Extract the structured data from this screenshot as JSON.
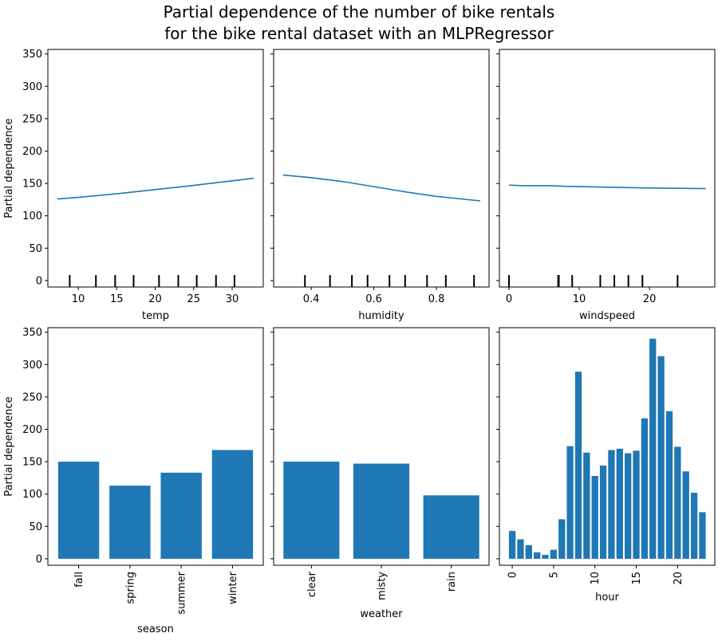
{
  "chart_data": [
    {
      "type": "line",
      "title_line1": "Partial dependence of the number of bike rentals",
      "title_line2": "for the bike rental dataset with an MLPRegressor",
      "xlabel": "temp",
      "ylabel": "Partial dependence",
      "xlim": [
        6.06,
        34.04
      ],
      "ylim": [
        -10,
        357
      ],
      "xticks": [
        10,
        15,
        20,
        25,
        30
      ],
      "yticks": [
        0,
        50,
        100,
        150,
        200,
        250,
        300,
        350
      ],
      "x": [
        7.3,
        10,
        15,
        20,
        25,
        30,
        32.8
      ],
      "y": [
        126,
        128.5,
        134,
        140.5,
        147,
        154,
        158
      ],
      "deciles": [
        8.9,
        12.3,
        14.8,
        17.2,
        20.5,
        23.0,
        25.4,
        27.9,
        30.3
      ]
    },
    {
      "type": "line",
      "xlabel": "humidity",
      "xlim": [
        0.28,
        0.968
      ],
      "ylim": [
        -10,
        357
      ],
      "xticks": [
        0.4,
        0.6,
        0.8
      ],
      "x": [
        0.31,
        0.4,
        0.5,
        0.6,
        0.7,
        0.8,
        0.94
      ],
      "y": [
        163,
        159,
        153,
        145,
        137,
        130,
        123
      ],
      "deciles": [
        0.38,
        0.46,
        0.53,
        0.58,
        0.65,
        0.7,
        0.77,
        0.83,
        0.92
      ]
    },
    {
      "type": "line",
      "xlabel": "windspeed",
      "xlim": [
        -1.36,
        29.3
      ],
      "ylim": [
        -10,
        357
      ],
      "xticks": [
        0,
        10,
        20
      ],
      "x": [
        0,
        2,
        6,
        8,
        15,
        20,
        28
      ],
      "y": [
        147.5,
        146.5,
        146.5,
        145.5,
        144,
        143,
        142
      ],
      "deciles": [
        0,
        7.0,
        7.1,
        9,
        13,
        15,
        17,
        19,
        24
      ]
    },
    {
      "type": "bar",
      "xlabel": "season",
      "ylabel": "Partial dependence",
      "ylim": [
        -10,
        357
      ],
      "xlim": [
        -0.6,
        3.6
      ],
      "categories": [
        "fall",
        "spring",
        "summer",
        "winter"
      ],
      "values": [
        150,
        113,
        133,
        168
      ]
    },
    {
      "type": "bar",
      "xlabel": "weather",
      "ylim": [
        -10,
        357
      ],
      "xlim": [
        -0.54,
        2.54
      ],
      "categories": [
        "clear",
        "misty",
        "rain"
      ],
      "values": [
        150,
        147,
        98
      ]
    },
    {
      "type": "bar",
      "xlabel": "hour",
      "ylim": [
        -10,
        357
      ],
      "xlim": [
        -1.55,
        24.5
      ],
      "xticks": [
        0,
        5,
        10,
        15,
        20
      ],
      "categories": [
        0,
        1,
        2,
        3,
        4,
        5,
        6,
        7,
        8,
        9,
        10,
        11,
        12,
        13,
        14,
        15,
        16,
        17,
        18,
        19,
        20,
        21,
        22,
        23
      ],
      "values": [
        43,
        30,
        21,
        10,
        6,
        14,
        61,
        174,
        289,
        164,
        128,
        144,
        168,
        170,
        163,
        167,
        217,
        340,
        313,
        228,
        173,
        135,
        102,
        72
      ]
    }
  ],
  "colors": {
    "series": "#1f77b4",
    "axes": "#000000"
  }
}
